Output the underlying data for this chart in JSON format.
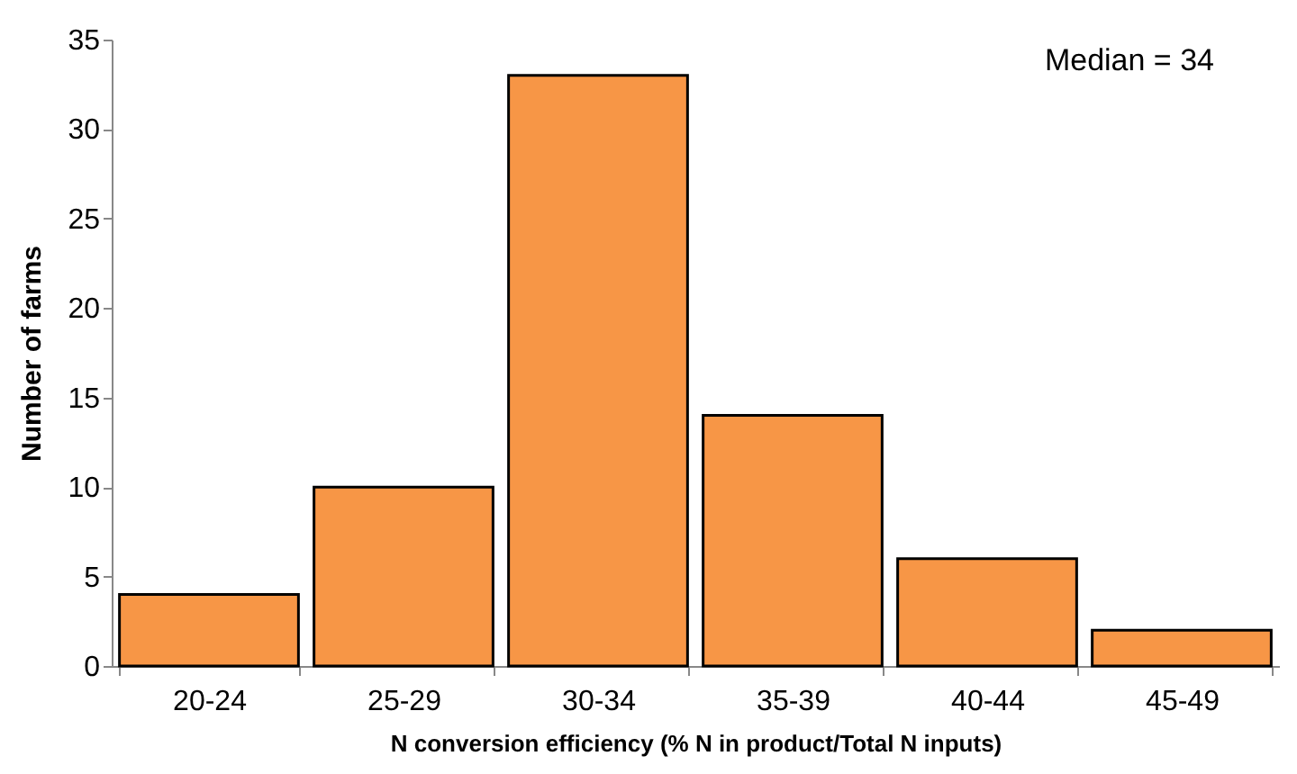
{
  "chart_data": {
    "type": "bar",
    "categories": [
      "20-24",
      "25-29",
      "30-34",
      "35-39",
      "40-44",
      "45-49"
    ],
    "values": [
      4,
      10,
      33,
      14,
      6,
      2
    ],
    "color": "#f79646",
    "xlabel": "N conversion efficiency (% N in product/Total N inputs)",
    "ylabel": "Number of farms",
    "ylim": [
      0,
      35
    ],
    "yticks": [
      0,
      5,
      10,
      15,
      20,
      25,
      30,
      35
    ],
    "grid": false,
    "annotations": [
      "Median = 34"
    ]
  }
}
